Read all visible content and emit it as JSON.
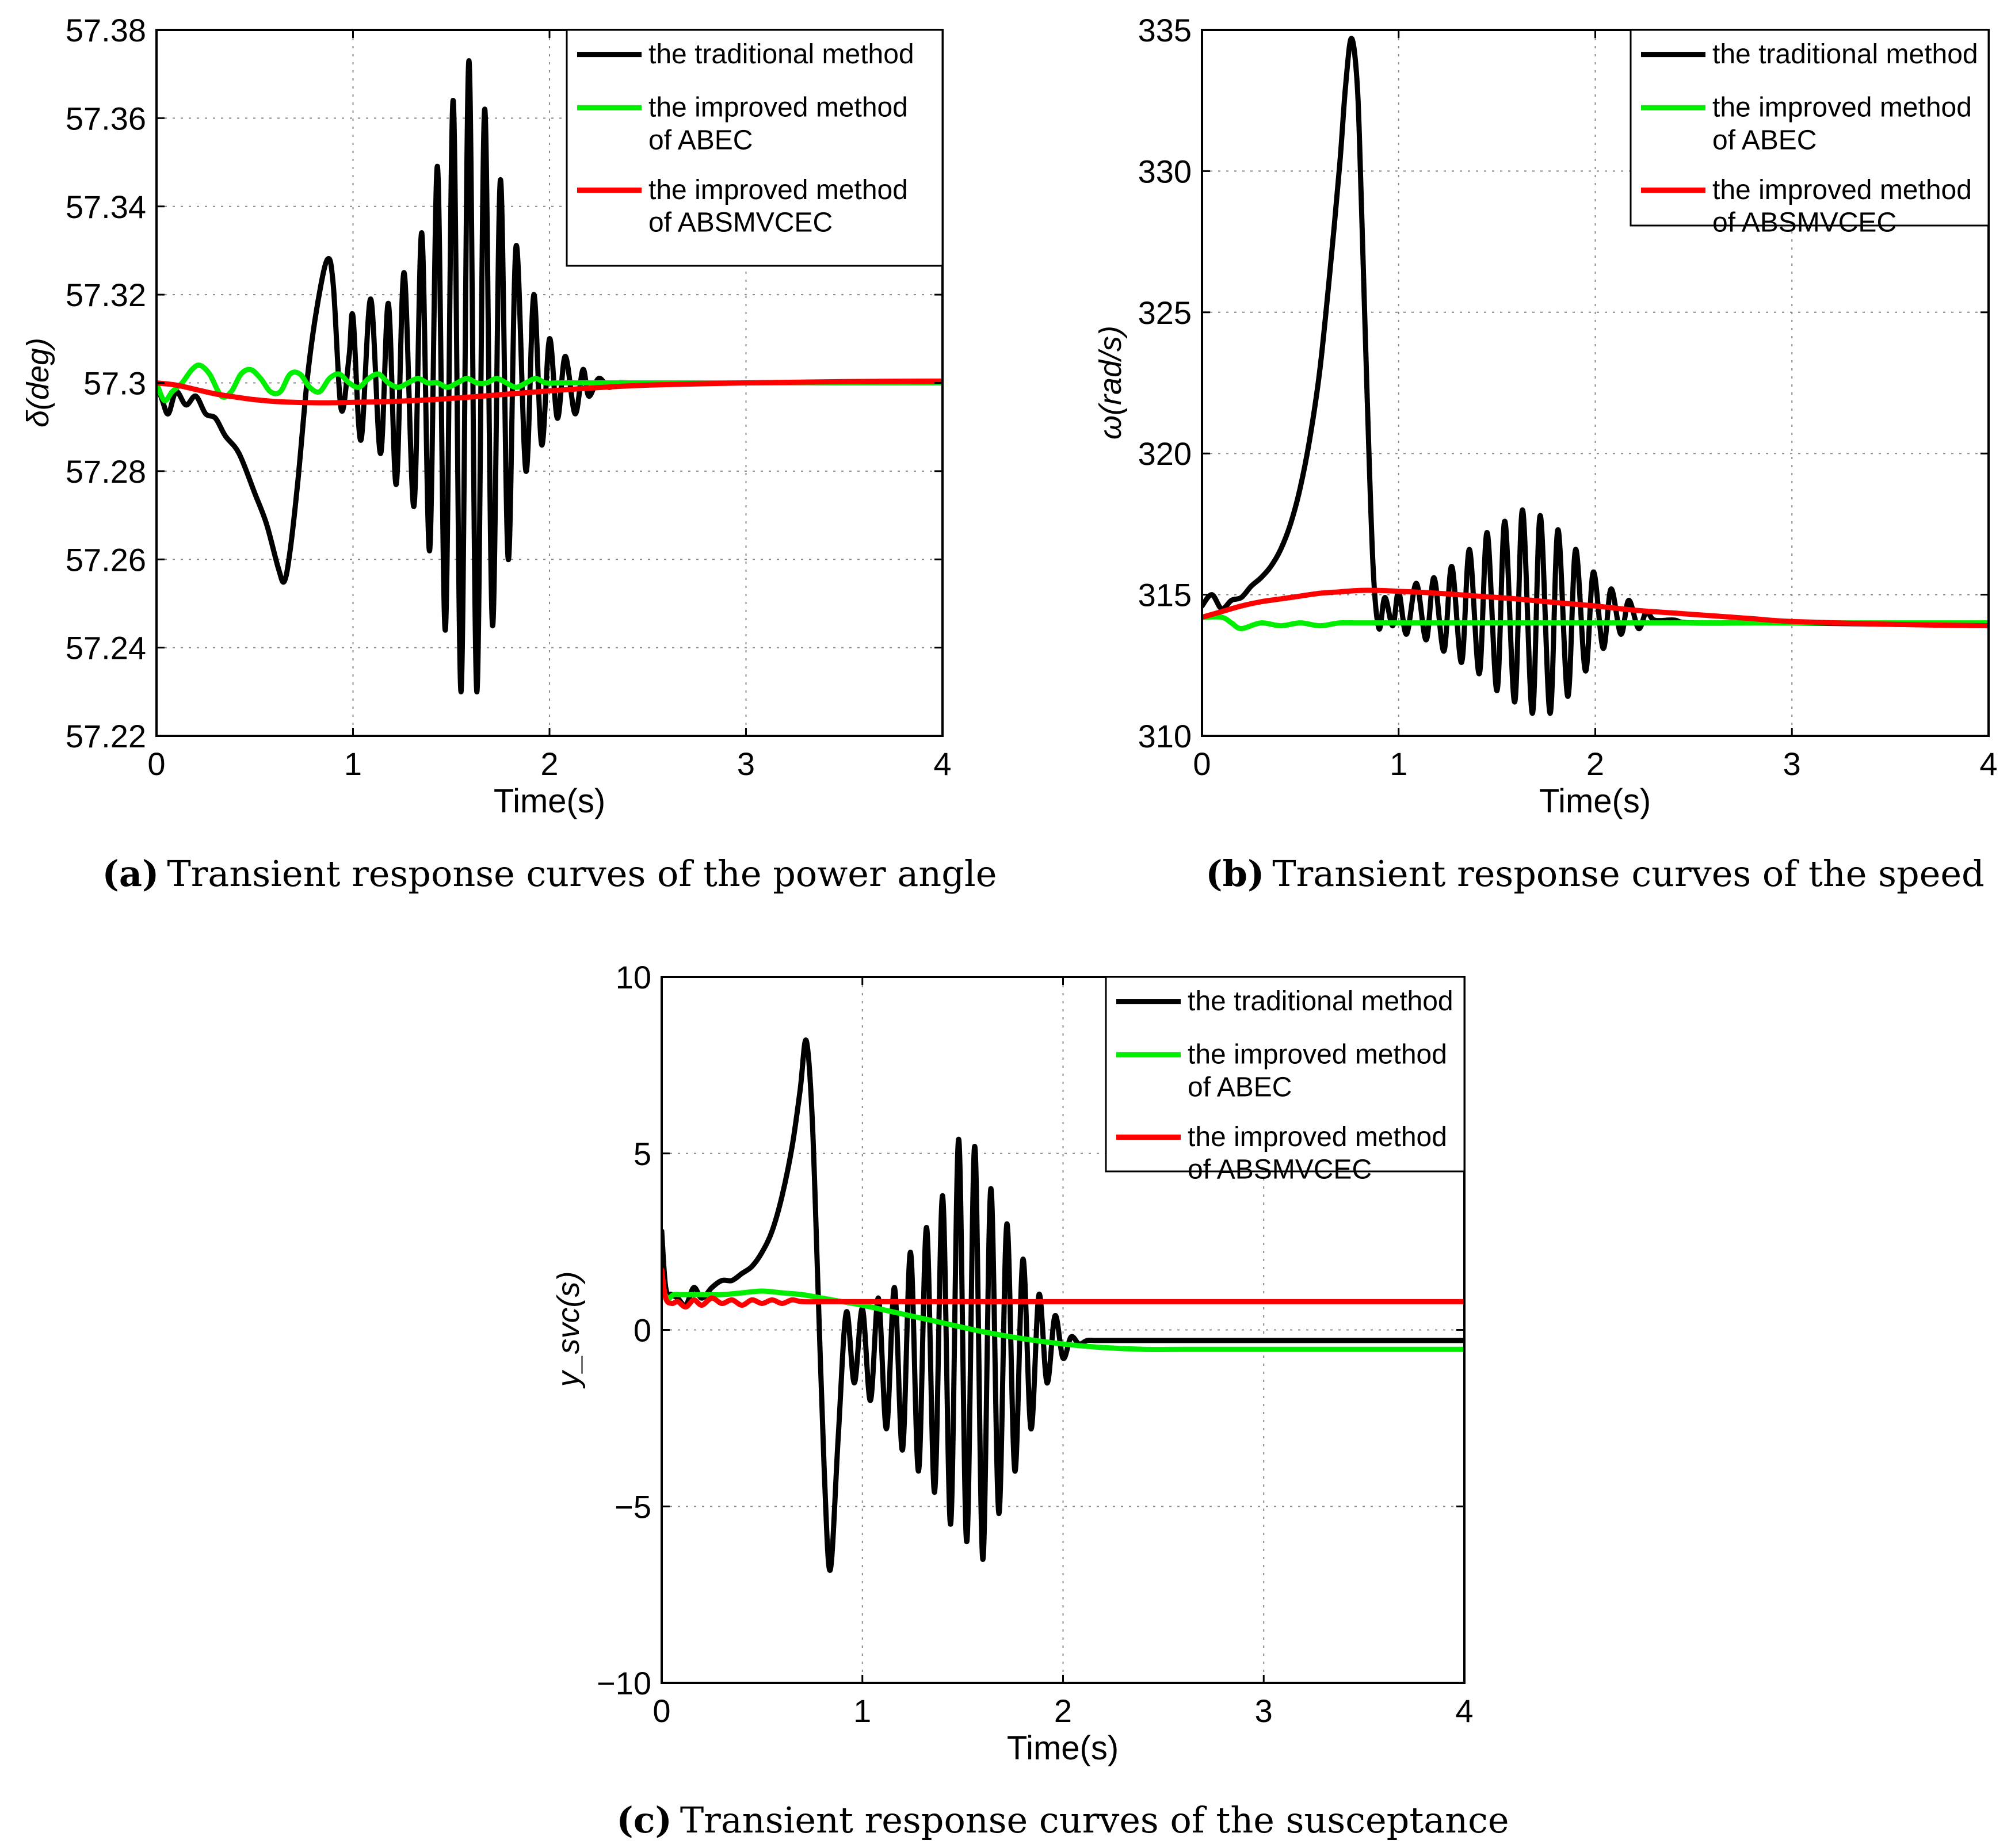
{
  "figure": {
    "colors": {
      "traditional": "#000000",
      "abec": "#00ee00",
      "absmvcec": "#ff0000",
      "grid": "#888888"
    }
  },
  "chart_data": [
    {
      "id": "a",
      "type": "line",
      "panel_label": "(a)",
      "caption": "Transient response curves of the power angle",
      "xlabel": "Time(s)",
      "ylabel": "δ(deg)",
      "xlim": [
        0,
        4
      ],
      "ylim": [
        57.22,
        57.38
      ],
      "xticks": [
        0,
        1,
        2,
        3,
        4
      ],
      "xtick_labels": [
        "0",
        "1",
        "2",
        "3",
        "4"
      ],
      "yticks": [
        57.22,
        57.24,
        57.26,
        57.28,
        57.3,
        57.32,
        57.34,
        57.36,
        57.38
      ],
      "ytick_labels": [
        "57.22",
        "57.24",
        "57.26",
        "57.28",
        "57.3",
        "57.32",
        "57.34",
        "57.36",
        "57.38"
      ],
      "grid": true,
      "legend_position": "top-right",
      "legend": [
        {
          "series": "traditional",
          "lines": [
            "the traditional method"
          ]
        },
        {
          "series": "abec",
          "lines": [
            "the improved method",
            " of ABEC"
          ]
        },
        {
          "series": "absmvcec",
          "lines": [
            "the improved method",
            "of ABSMVCEC"
          ]
        }
      ],
      "series": [
        {
          "name": "the traditional method",
          "color_key": "traditional",
          "x": [
            0,
            0.03,
            0.06,
            0.1,
            0.15,
            0.2,
            0.25,
            0.3,
            0.35,
            0.42,
            0.5,
            0.56,
            0.62,
            0.65,
            0.68,
            0.72,
            0.77,
            0.82,
            0.87,
            0.9,
            0.94,
            0.98,
            1.0,
            1.04,
            1.09,
            1.14,
            1.18,
            1.22,
            1.26,
            1.31,
            1.35,
            1.39,
            1.43,
            1.47,
            1.51,
            1.55,
            1.59,
            1.63,
            1.67,
            1.71,
            1.75,
            1.79,
            1.83,
            1.88,
            1.92,
            1.96,
            2.0,
            2.04,
            2.08,
            2.13,
            2.17,
            2.2,
            2.25,
            2.3,
            2.35,
            2.4,
            2.45,
            2.5,
            3.0,
            4.0
          ],
          "y": [
            57.3,
            57.296,
            57.293,
            57.298,
            57.295,
            57.297,
            57.293,
            57.292,
            57.288,
            57.284,
            57.275,
            57.268,
            57.258,
            57.255,
            57.262,
            57.278,
            57.302,
            57.318,
            57.328,
            57.322,
            57.294,
            57.306,
            57.315,
            57.287,
            57.319,
            57.284,
            57.318,
            57.277,
            57.325,
            57.272,
            57.334,
            57.262,
            57.349,
            57.244,
            57.364,
            57.23,
            57.373,
            57.23,
            57.362,
            57.245,
            57.346,
            57.26,
            57.331,
            57.28,
            57.32,
            57.286,
            57.31,
            57.292,
            57.306,
            57.293,
            57.303,
            57.297,
            57.301,
            57.299,
            57.3,
            57.3,
            57.3,
            57.3,
            57.3,
            57.3
          ]
        },
        {
          "name": "the improved method of ABEC",
          "color_key": "abec",
          "x": [
            0,
            0.04,
            0.08,
            0.13,
            0.18,
            0.22,
            0.27,
            0.33,
            0.38,
            0.43,
            0.48,
            0.53,
            0.58,
            0.63,
            0.68,
            0.73,
            0.78,
            0.83,
            0.88,
            0.93,
            0.98,
            1.03,
            1.08,
            1.13,
            1.18,
            1.23,
            1.28,
            1.33,
            1.38,
            1.43,
            1.48,
            1.53,
            1.58,
            1.63,
            1.68,
            1.73,
            1.78,
            1.83,
            1.88,
            1.93,
            1.98,
            2.05,
            2.2,
            2.5,
            3.0,
            4.0
          ],
          "y": [
            57.3,
            57.296,
            57.298,
            57.3,
            57.303,
            57.304,
            57.302,
            57.297,
            57.298,
            57.302,
            57.303,
            57.301,
            57.298,
            57.298,
            57.302,
            57.302,
            57.299,
            57.298,
            57.301,
            57.302,
            57.3,
            57.299,
            57.301,
            57.302,
            57.3,
            57.299,
            57.3,
            57.301,
            57.3,
            57.3,
            57.299,
            57.3,
            57.301,
            57.3,
            57.3,
            57.301,
            57.3,
            57.299,
            57.3,
            57.301,
            57.3,
            57.3,
            57.3,
            57.3,
            57.3,
            57.3
          ]
        },
        {
          "name": "the improved method of ABSMVCEC",
          "color_key": "absmvcec",
          "x": [
            0,
            0.1,
            0.2,
            0.3,
            0.4,
            0.5,
            0.6,
            0.7,
            0.8,
            0.9,
            1.0,
            1.2,
            1.4,
            1.6,
            1.8,
            2.0,
            2.2,
            2.5,
            3.0,
            3.5,
            4.0
          ],
          "y": [
            57.3,
            57.2995,
            57.2985,
            57.2975,
            57.2968,
            57.2962,
            57.2958,
            57.2956,
            57.2955,
            57.2955,
            57.2956,
            57.2958,
            57.2962,
            57.2968,
            57.2975,
            57.2982,
            57.2988,
            57.2995,
            57.3,
            57.3003,
            57.3004
          ]
        }
      ]
    },
    {
      "id": "b",
      "type": "line",
      "panel_label": "(b)",
      "caption": "Transient response curves of the speed",
      "xlabel": "Time(s)",
      "ylabel": "ω(rad/s)",
      "xlim": [
        0,
        4
      ],
      "ylim": [
        310,
        335
      ],
      "xticks": [
        0,
        1,
        2,
        3,
        4
      ],
      "xtick_labels": [
        "0",
        "1",
        "2",
        "3",
        "4"
      ],
      "yticks": [
        310,
        315,
        320,
        325,
        330,
        335
      ],
      "ytick_labels": [
        "310",
        "315",
        "320",
        "325",
        "330",
        "335"
      ],
      "grid": true,
      "legend_position": "top-right",
      "legend": [
        {
          "series": "traditional",
          "lines": [
            "the traditional method"
          ]
        },
        {
          "series": "abec",
          "lines": [
            "the improved method",
            "of ABEC"
          ]
        },
        {
          "series": "absmvcec",
          "lines": [
            "the improved method",
            "of ABSMVCEC"
          ]
        }
      ],
      "series": [
        {
          "name": "the traditional method",
          "color_key": "traditional",
          "x": [
            0,
            0.05,
            0.1,
            0.15,
            0.2,
            0.25,
            0.3,
            0.35,
            0.4,
            0.45,
            0.5,
            0.55,
            0.6,
            0.65,
            0.7,
            0.73,
            0.76,
            0.79,
            0.81,
            0.84,
            0.87,
            0.9,
            0.93,
            0.97,
            1.0,
            1.04,
            1.09,
            1.14,
            1.18,
            1.23,
            1.27,
            1.32,
            1.36,
            1.41,
            1.45,
            1.5,
            1.54,
            1.59,
            1.63,
            1.68,
            1.72,
            1.77,
            1.81,
            1.86,
            1.9,
            1.95,
            1.99,
            2.04,
            2.08,
            2.13,
            2.17,
            2.22,
            2.26,
            2.3,
            2.4,
            2.5,
            3.0,
            4.0
          ],
          "y": [
            314.6,
            315.0,
            314.5,
            314.8,
            314.9,
            315.3,
            315.6,
            316.0,
            316.6,
            317.5,
            318.8,
            320.6,
            323.0,
            326.4,
            330.2,
            333.0,
            334.7,
            333.0,
            329.0,
            322.0,
            316.0,
            313.8,
            314.9,
            313.9,
            315.1,
            313.6,
            315.4,
            313.4,
            315.6,
            313.0,
            316.0,
            312.6,
            316.6,
            312.2,
            317.2,
            311.6,
            317.6,
            311.2,
            318.0,
            310.8,
            317.8,
            310.8,
            317.3,
            311.4,
            316.6,
            312.3,
            315.8,
            313.1,
            315.2,
            313.6,
            314.8,
            313.8,
            314.4,
            314.1,
            314.1,
            314.0,
            314.0,
            313.9
          ]
        },
        {
          "name": "the improved method of ABEC",
          "color_key": "abec",
          "x": [
            0,
            0.1,
            0.15,
            0.2,
            0.3,
            0.4,
            0.5,
            0.6,
            0.7,
            0.8,
            0.9,
            1.0,
            1.5,
            2.0,
            2.5,
            3.0,
            4.0
          ],
          "y": [
            314.2,
            314.2,
            314.0,
            313.8,
            314.0,
            313.9,
            314.0,
            313.9,
            314.0,
            314.0,
            314.0,
            314.0,
            314.0,
            314.0,
            314.0,
            314.0,
            314.0
          ]
        },
        {
          "name": "the improved method of ABSMVCEC",
          "color_key": "absmvcec",
          "x": [
            0,
            0.1,
            0.2,
            0.3,
            0.4,
            0.5,
            0.6,
            0.7,
            0.8,
            0.9,
            1.0,
            1.2,
            1.4,
            1.6,
            1.8,
            2.0,
            2.2,
            2.4,
            2.6,
            2.8,
            3.0,
            3.5,
            4.0
          ],
          "y": [
            314.2,
            314.4,
            314.6,
            314.75,
            314.85,
            314.95,
            315.05,
            315.1,
            315.15,
            315.15,
            315.12,
            315.05,
            314.95,
            314.85,
            314.72,
            314.6,
            314.45,
            314.35,
            314.25,
            314.15,
            314.05,
            313.95,
            313.9
          ]
        }
      ]
    },
    {
      "id": "c",
      "type": "line",
      "panel_label": "(c)",
      "caption": "Transient response curves of the susceptance",
      "xlabel": "Time(s)",
      "ylabel": "y_svc(s)",
      "xlim": [
        0,
        4
      ],
      "ylim": [
        -10,
        10
      ],
      "xticks": [
        0,
        1,
        2,
        3,
        4
      ],
      "xtick_labels": [
        "0",
        "1",
        "2",
        "3",
        "4"
      ],
      "yticks": [
        -10,
        -5,
        0,
        5,
        10
      ],
      "ytick_labels": [
        "−10",
        "−5",
        "0",
        "5",
        "10"
      ],
      "grid": true,
      "legend_position": "top-right",
      "legend": [
        {
          "series": "traditional",
          "lines": [
            "the traditional method"
          ]
        },
        {
          "series": "abec",
          "lines": [
            "the improved method",
            "of ABEC"
          ]
        },
        {
          "series": "absmvcec",
          "lines": [
            "the improved method",
            "of ABSMVCEC"
          ]
        }
      ],
      "series": [
        {
          "name": "the traditional method",
          "color_key": "traditional",
          "x": [
            0,
            0.02,
            0.05,
            0.08,
            0.12,
            0.16,
            0.2,
            0.25,
            0.3,
            0.35,
            0.4,
            0.45,
            0.5,
            0.55,
            0.6,
            0.65,
            0.69,
            0.72,
            0.75,
            0.78,
            0.81,
            0.84,
            0.88,
            0.92,
            0.96,
            1.0,
            1.04,
            1.08,
            1.12,
            1.16,
            1.2,
            1.24,
            1.28,
            1.32,
            1.36,
            1.4,
            1.44,
            1.48,
            1.52,
            1.56,
            1.6,
            1.64,
            1.68,
            1.72,
            1.76,
            1.8,
            1.84,
            1.88,
            1.92,
            1.96,
            2.0,
            2.04,
            2.08,
            2.12,
            2.16,
            2.2,
            2.24,
            2.28,
            2.32,
            2.36,
            2.4,
            2.45,
            2.5,
            3.0,
            4.0
          ],
          "y": [
            2.8,
            1.2,
            1.0,
            0.9,
            0.7,
            1.2,
            0.9,
            1.2,
            1.4,
            1.4,
            1.6,
            1.8,
            2.2,
            2.8,
            3.8,
            5.2,
            6.8,
            8.2,
            6.0,
            1.0,
            -4.0,
            -6.8,
            -3.0,
            0.5,
            -1.5,
            0.6,
            -2.0,
            0.9,
            -2.8,
            1.2,
            -3.4,
            2.2,
            -4.0,
            2.9,
            -4.6,
            3.8,
            -5.5,
            5.4,
            -6.0,
            5.2,
            -6.5,
            4.0,
            -5.2,
            3.0,
            -4.0,
            2.0,
            -2.8,
            1.0,
            -1.5,
            0.4,
            -0.8,
            -0.2,
            -0.4,
            -0.3,
            -0.3,
            -0.3,
            -0.3,
            -0.3,
            -0.3,
            -0.3,
            -0.3,
            -0.3,
            -0.3,
            -0.3,
            -0.3
          ]
        },
        {
          "name": "the improved method of ABEC",
          "color_key": "abec",
          "x": [
            0,
            0.03,
            0.06,
            0.1,
            0.2,
            0.3,
            0.4,
            0.5,
            0.6,
            0.7,
            0.8,
            0.9,
            1.0,
            1.2,
            1.4,
            1.6,
            1.8,
            2.0,
            2.2,
            2.4,
            2.6,
            2.8,
            3.0,
            3.5,
            4.0
          ],
          "y": [
            1.2,
            0.9,
            1.0,
            1.0,
            1.0,
            1.0,
            1.05,
            1.1,
            1.05,
            1.0,
            0.9,
            0.8,
            0.7,
            0.45,
            0.2,
            -0.05,
            -0.25,
            -0.4,
            -0.5,
            -0.55,
            -0.55,
            -0.55,
            -0.55,
            -0.55,
            -0.55
          ]
        },
        {
          "name": "the improved method of ABSMVCEC",
          "color_key": "absmvcec",
          "x": [
            0,
            0.02,
            0.05,
            0.08,
            0.12,
            0.16,
            0.2,
            0.25,
            0.3,
            0.35,
            0.4,
            0.45,
            0.5,
            0.55,
            0.6,
            0.65,
            0.7,
            0.8,
            0.9,
            1.0,
            1.2,
            1.5,
            2.0,
            2.5,
            3.0,
            4.0
          ],
          "y": [
            1.7,
            0.9,
            0.75,
            0.8,
            0.65,
            0.85,
            0.7,
            0.9,
            0.75,
            0.85,
            0.7,
            0.85,
            0.75,
            0.85,
            0.75,
            0.85,
            0.8,
            0.8,
            0.8,
            0.8,
            0.8,
            0.8,
            0.8,
            0.8,
            0.8,
            0.8
          ]
        }
      ]
    }
  ]
}
